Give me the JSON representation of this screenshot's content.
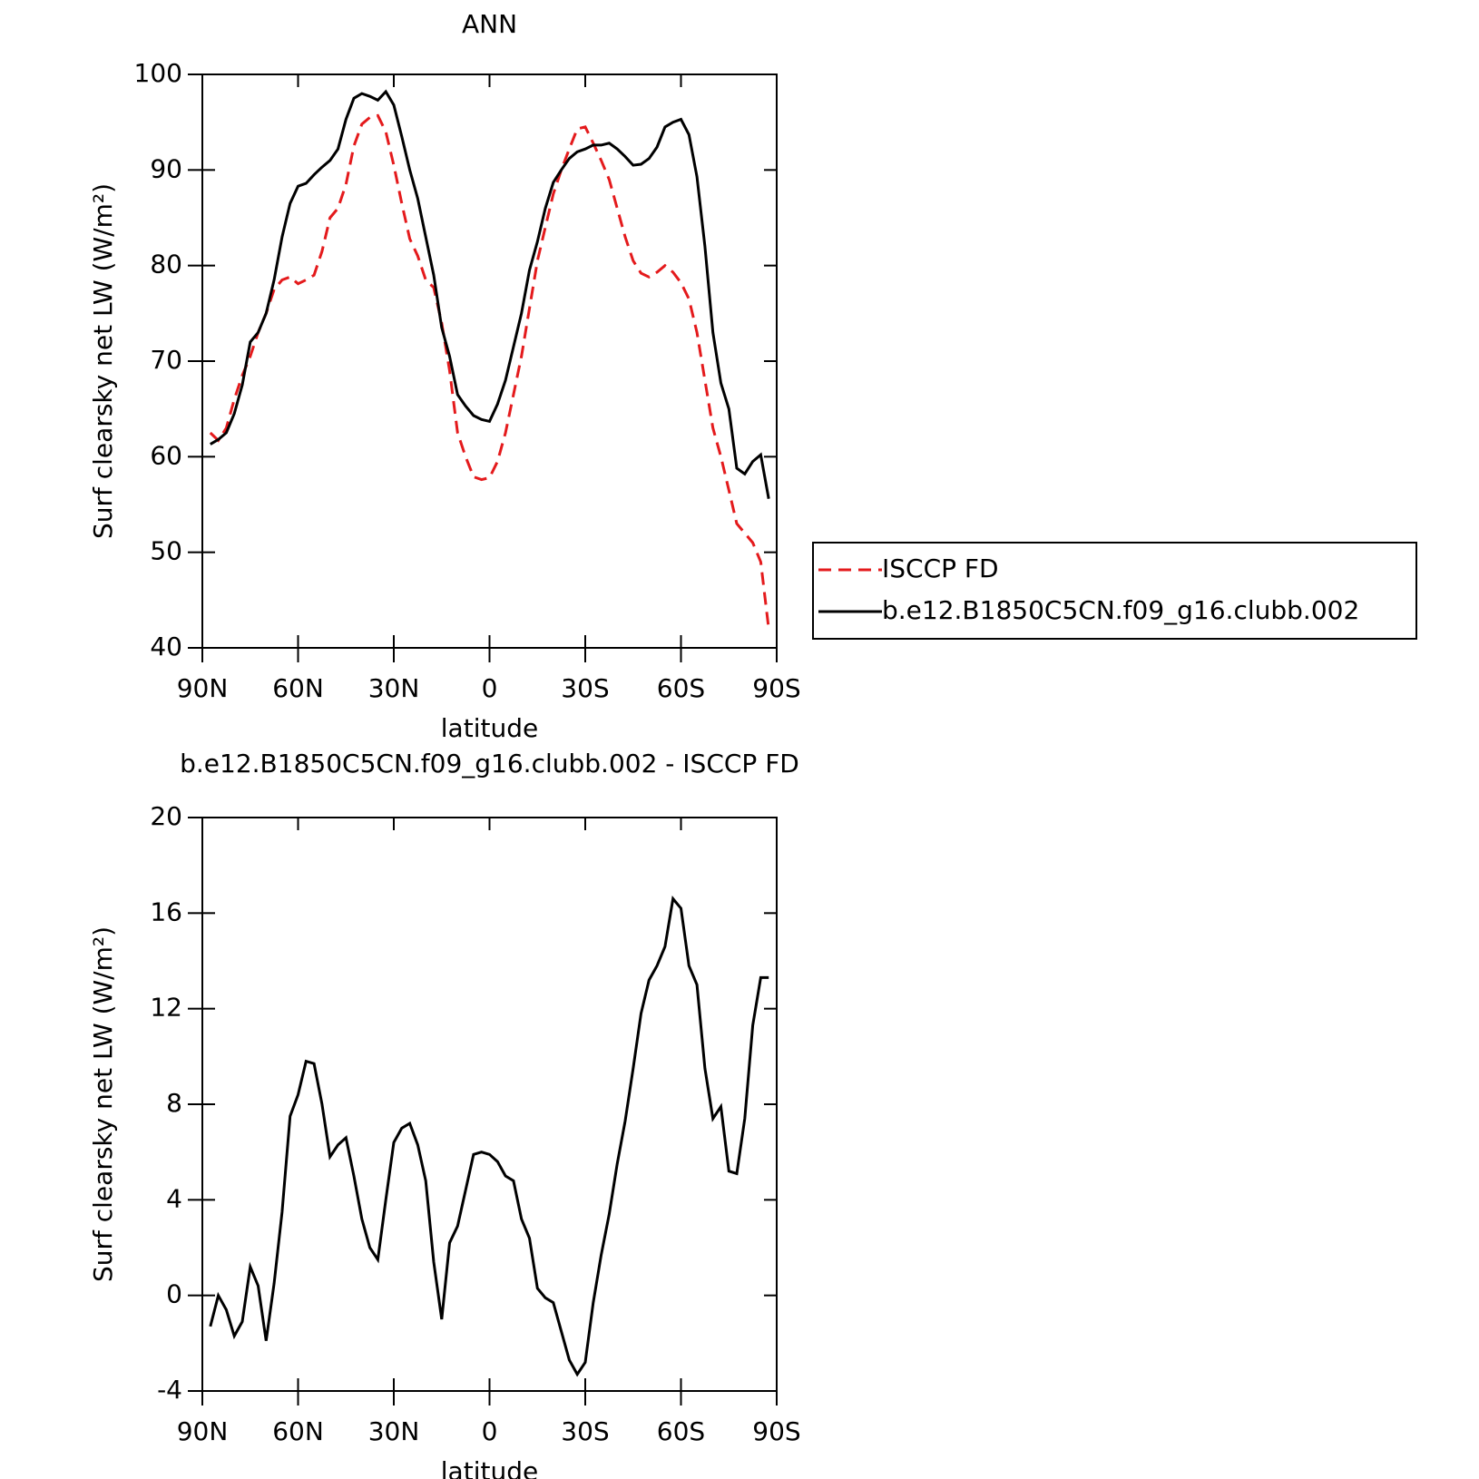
{
  "chart_data": [
    {
      "type": "line",
      "title": "ANN",
      "xlabel": "latitude",
      "ylabel": "Surf clearsky net LW (W/m²)",
      "x": [
        87.5,
        85,
        82.5,
        80,
        77.5,
        75,
        72.5,
        70,
        67.5,
        65,
        62.5,
        60,
        57.5,
        55,
        52.5,
        50,
        47.5,
        45,
        42.5,
        40,
        37.5,
        35,
        32.5,
        30,
        27.5,
        25,
        22.5,
        20,
        17.5,
        15,
        12.5,
        10,
        7.5,
        5,
        2.5,
        0,
        -2.5,
        -5,
        -7.5,
        -10,
        -12.5,
        -15,
        -17.5,
        -20,
        -22.5,
        -25,
        -27.5,
        -30,
        -32.5,
        -35,
        -37.5,
        -40,
        -42.5,
        -45,
        -47.5,
        -50,
        -52.5,
        -55,
        -57.5,
        -60,
        -62.5,
        -65,
        -67.5,
        -70,
        -72.5,
        -75,
        -77.5,
        -80,
        -82.5,
        -85,
        -87.5
      ],
      "xlim": [
        90,
        -90
      ],
      "xticks": [
        {
          "value": 90,
          "label": "90N"
        },
        {
          "value": 60,
          "label": "60N"
        },
        {
          "value": 30,
          "label": "30N"
        },
        0,
        {
          "value": -30,
          "label": "30S"
        },
        {
          "value": -60,
          "label": "60S"
        },
        {
          "value": -90,
          "label": "90S"
        }
      ],
      "ylim": [
        40,
        100
      ],
      "yticks": [
        40,
        50,
        60,
        70,
        80,
        90,
        100
      ],
      "legend": "right",
      "series": [
        {
          "name": "ISCCP FD",
          "color": "#e41a1c",
          "linestyle": "dashed",
          "values": [
            62.5,
            61.7,
            63,
            66,
            68.5,
            70.5,
            73,
            75,
            77.5,
            78.5,
            78.8,
            78.1,
            78.5,
            79,
            81.5,
            85,
            86,
            88.5,
            92.5,
            94.8,
            95.5,
            95.7,
            94,
            90.5,
            86.5,
            82.8,
            81,
            78.5,
            77.7,
            74,
            69,
            62.5,
            60,
            57.9,
            57.6,
            57.8,
            59.5,
            62.5,
            66.5,
            70.5,
            75.5,
            80.5,
            84,
            87.5,
            90,
            92.2,
            94.3,
            94.5,
            92.8,
            91,
            89,
            86,
            83,
            80.5,
            79.2,
            78.8,
            79.3,
            80,
            79.3,
            78.2,
            76.5,
            73,
            68,
            63,
            60,
            56.5,
            53,
            52,
            51,
            49,
            42
          ]
        },
        {
          "name": "b.e12.B1850C5CN.f09_g16.clubb.002",
          "color": "#000000",
          "linestyle": "solid",
          "values": [
            61.3,
            61.8,
            62.5,
            64.5,
            67.5,
            72,
            73,
            75,
            78.5,
            83,
            86.5,
            88.3,
            88.6,
            89.5,
            90.3,
            91,
            92.2,
            95.3,
            97.5,
            98,
            97.7,
            97.3,
            98.2,
            96.8,
            93.5,
            90,
            87,
            83,
            79,
            73.5,
            70.5,
            66.5,
            65.3,
            64.3,
            63.9,
            63.7,
            65.5,
            68,
            71.5,
            75,
            79.5,
            82.5,
            86,
            88.7,
            90,
            91.2,
            91.9,
            92.2,
            92.6,
            92.6,
            92.8,
            92.2,
            91.4,
            90.5,
            90.6,
            91.2,
            92.4,
            94.5,
            95,
            95.3,
            93.7,
            89.3,
            82,
            73,
            67.7,
            65,
            58.8,
            58.2,
            59.5,
            60.2,
            55.6
          ]
        }
      ]
    },
    {
      "type": "line",
      "title": "b.e12.B1850C5CN.f09_g16.clubb.002 - ISCCP FD",
      "xlabel": "latitude",
      "ylabel": "Surf clearsky net LW (W/m²)",
      "x": [
        87.5,
        85,
        82.5,
        80,
        77.5,
        75,
        72.5,
        70,
        67.5,
        65,
        62.5,
        60,
        57.5,
        55,
        52.5,
        50,
        47.5,
        45,
        42.5,
        40,
        37.5,
        35,
        32.5,
        30,
        27.5,
        25,
        22.5,
        20,
        17.5,
        15,
        12.5,
        10,
        7.5,
        5,
        2.5,
        0,
        -2.5,
        -5,
        -7.5,
        -10,
        -12.5,
        -15,
        -17.5,
        -20,
        -22.5,
        -25,
        -27.5,
        -30,
        -32.5,
        -35,
        -37.5,
        -40,
        -42.5,
        -45,
        -47.5,
        -50,
        -52.5,
        -55,
        -57.5,
        -60,
        -62.5,
        -65,
        -67.5,
        -70,
        -72.5,
        -75,
        -77.5,
        -80,
        -82.5,
        -85,
        -87.5
      ],
      "xlim": [
        90,
        -90
      ],
      "xticks": [
        {
          "value": 90,
          "label": "90N"
        },
        {
          "value": 60,
          "label": "60N"
        },
        {
          "value": 30,
          "label": "30N"
        },
        0,
        {
          "value": -30,
          "label": "30S"
        },
        {
          "value": -60,
          "label": "60S"
        },
        {
          "value": -90,
          "label": "90S"
        }
      ],
      "ylim": [
        -4,
        20
      ],
      "yticks": [
        -4,
        0,
        4,
        8,
        12,
        16,
        20
      ],
      "series": [
        {
          "color": "#000000",
          "linestyle": "solid",
          "values": [
            -1.3,
            0,
            -0.6,
            -1.7,
            -1.1,
            1.2,
            0.4,
            -1.9,
            0.5,
            3.5,
            7.5,
            8.4,
            9.8,
            9.7,
            8,
            5.8,
            6.3,
            6.6,
            5,
            3.2,
            2,
            1.5,
            4,
            6.4,
            7,
            7.2,
            6.3,
            4.8,
            1.4,
            -1,
            2.2,
            2.9,
            4.4,
            5.9,
            6,
            5.9,
            5.6,
            5,
            4.8,
            3.2,
            2.4,
            0.3,
            -0.1,
            -0.3,
            -1.5,
            -2.7,
            -3.3,
            -2.8,
            -0.3,
            1.7,
            3.4,
            5.5,
            7.3,
            9.5,
            11.8,
            13.2,
            13.8,
            14.6,
            16.6,
            16.2,
            13.8,
            13,
            9.5,
            7.4,
            7.9,
            5.2,
            5.1,
            7.4,
            11.3,
            13.3,
            13.3
          ]
        }
      ]
    }
  ]
}
